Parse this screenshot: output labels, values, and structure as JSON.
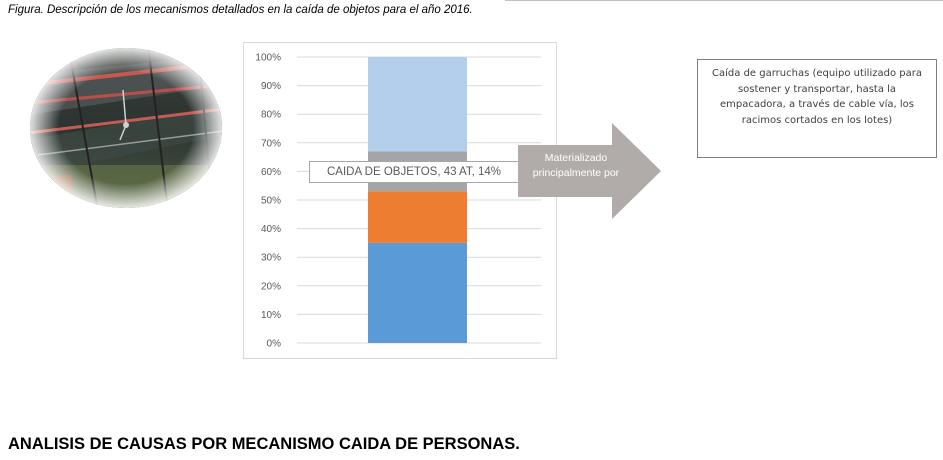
{
  "caption": "Figura. Descripción de los mecanismos detallados en la caída de objetos para el año 2016.",
  "photo": {
    "description_icon": "overhead-cable-pulley-photo"
  },
  "chart_data": {
    "type": "bar",
    "stacked": true,
    "ylim": [
      0,
      100
    ],
    "y_ticks": [
      "0%",
      "10%",
      "20%",
      "30%",
      "40%",
      "50%",
      "60%",
      "70%",
      "80%",
      "90%",
      "100%"
    ],
    "grid": true,
    "series": [
      {
        "values": [
          35
        ],
        "color": "#5b9bd5"
      },
      {
        "values": [
          18
        ],
        "color": "#ed7d31"
      },
      {
        "values": [
          14
        ],
        "color": "#a5a5a5"
      },
      {
        "values": [
          33
        ],
        "color": "#b4cfeb"
      }
    ],
    "data_label": "CAIDA DE OBJETOS, 43 AT, 14%"
  },
  "arrow": {
    "label": "Materializado principalmente por",
    "color": "#b1aca9"
  },
  "description": "Caída de garruchas (equipo utilizado para sostener y transportar, hasta la empacadora,  a través de cable vía, los racimos cortados en los lotes)",
  "heading": "ANALISIS DE CAUSAS POR MECANISMO CAIDA DE PERSONAS."
}
